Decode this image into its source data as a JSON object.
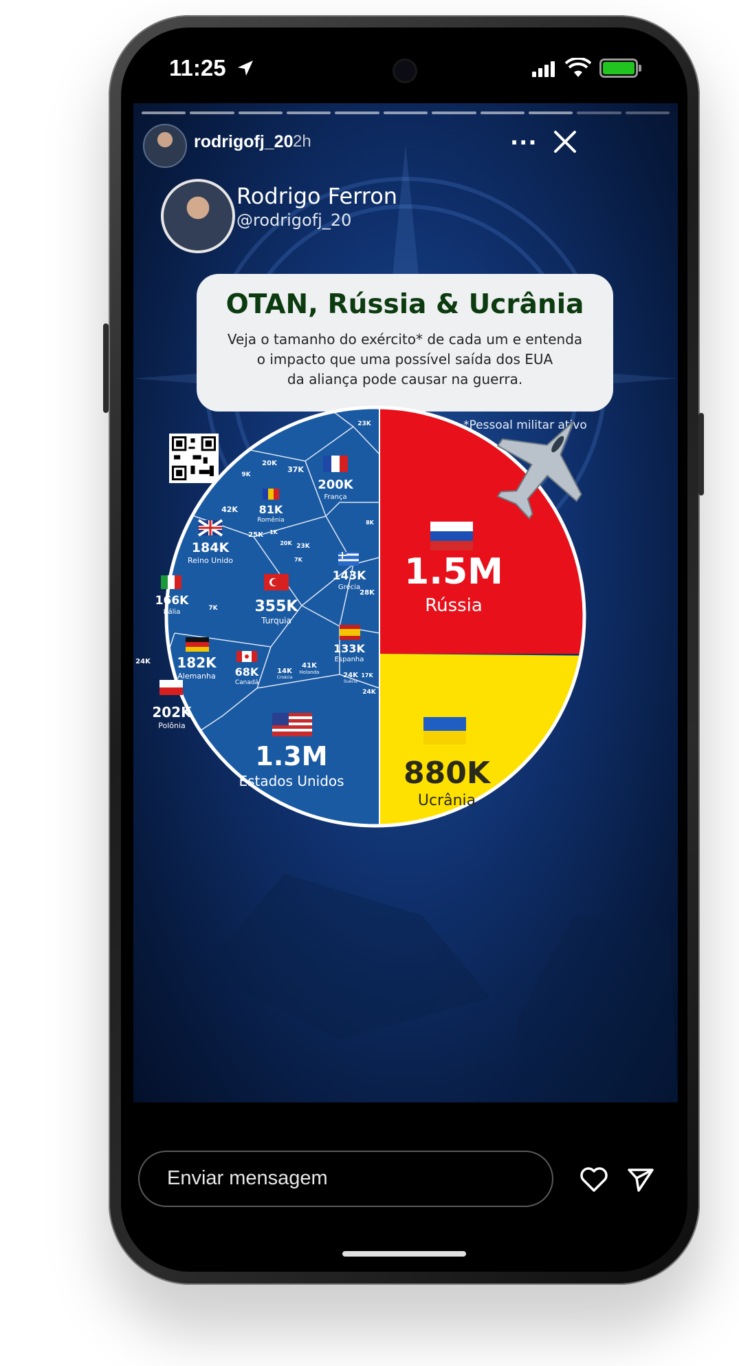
{
  "status": {
    "time": "11:25"
  },
  "story": {
    "username": "rodrigofj_20",
    "age": "2h",
    "more_label": "···"
  },
  "profile": {
    "name": "Rodrigo Ferron",
    "handle": "@rodrigofj_20"
  },
  "infographic": {
    "title": "OTAN, Rússia & Ucrânia",
    "subtitle_lines": [
      "Veja o tamanho do exército* de cada um e entenda",
      "o impacto que uma possível saída dos EUA",
      "da aliança pode causar na guerra."
    ],
    "note": "*Pessoal militar ativo"
  },
  "chart_data": {
    "type": "pie",
    "title": "OTAN, Rússia & Ucrânia",
    "unit": "Pessoal militar ativo",
    "slices": [
      {
        "name": "Rússia",
        "label": "1.5M",
        "value": 1500000,
        "color": "#e8101a"
      },
      {
        "name": "Ucrânia",
        "label": "880K",
        "value": 880000,
        "color": "#ffe100"
      },
      {
        "name": "OTAN",
        "value": 3500000,
        "color": "#1a5aa3"
      }
    ],
    "nato_members": [
      {
        "name": "Estados Unidos",
        "label": "1.3M",
        "value": 1300000
      },
      {
        "name": "Turquia",
        "label": "355K",
        "value": 355000
      },
      {
        "name": "Polônia",
        "label": "202K",
        "value": 202000
      },
      {
        "name": "França",
        "label": "200K",
        "value": 200000
      },
      {
        "name": "Reino Unido",
        "label": "184K",
        "value": 184000
      },
      {
        "name": "Alemanha",
        "label": "182K",
        "value": 182000
      },
      {
        "name": "Itália",
        "label": "166K",
        "value": 166000
      },
      {
        "name": "Grécia",
        "label": "143K",
        "value": 143000
      },
      {
        "name": "Espanha",
        "label": "133K",
        "value": 133000
      },
      {
        "name": "Romênia",
        "label": "81K",
        "value": 81000
      },
      {
        "name": "Canadá",
        "label": "68K",
        "value": 68000
      },
      {
        "name": "",
        "label": "42K",
        "value": 42000
      },
      {
        "name": "Holanda",
        "label": "41K",
        "value": 41000
      },
      {
        "name": "",
        "label": "37K",
        "value": 37000
      },
      {
        "name": "",
        "label": "28K",
        "value": 28000
      },
      {
        "name": "",
        "label": "25K",
        "value": 25000
      },
      {
        "name": "",
        "label": "24K",
        "value": 24000
      },
      {
        "name": "Suécia",
        "label": "24K",
        "value": 24000
      },
      {
        "name": "",
        "label": "24K",
        "value": 24000
      },
      {
        "name": "",
        "label": "23K",
        "value": 23000
      },
      {
        "name": "",
        "label": "23K",
        "value": 23000
      },
      {
        "name": "",
        "label": "20K",
        "value": 20000
      },
      {
        "name": "",
        "label": "20K",
        "value": 20000
      },
      {
        "name": "",
        "label": "17K",
        "value": 17000
      },
      {
        "name": "Croácia",
        "label": "14K",
        "value": 14000
      },
      {
        "name": "",
        "label": "9K",
        "value": 9000
      },
      {
        "name": "",
        "label": "8K",
        "value": 8000
      },
      {
        "name": "",
        "label": "7K",
        "value": 7000
      },
      {
        "name": "",
        "label": "7K",
        "value": 7000
      },
      {
        "name": "",
        "label": "1K",
        "value": 1000
      }
    ]
  },
  "composer": {
    "placeholder": "Enviar mensagem"
  },
  "colors": {
    "russia": "#e8101a",
    "ukraine": "#ffe100",
    "nato": "#1a5aa3",
    "title_green": "#0d3b10"
  },
  "icons": [
    "location-arrow-icon",
    "signal-icon",
    "wifi-icon",
    "battery-icon",
    "more-icon",
    "close-icon",
    "heart-icon",
    "send-icon",
    "qr-code-icon"
  ]
}
